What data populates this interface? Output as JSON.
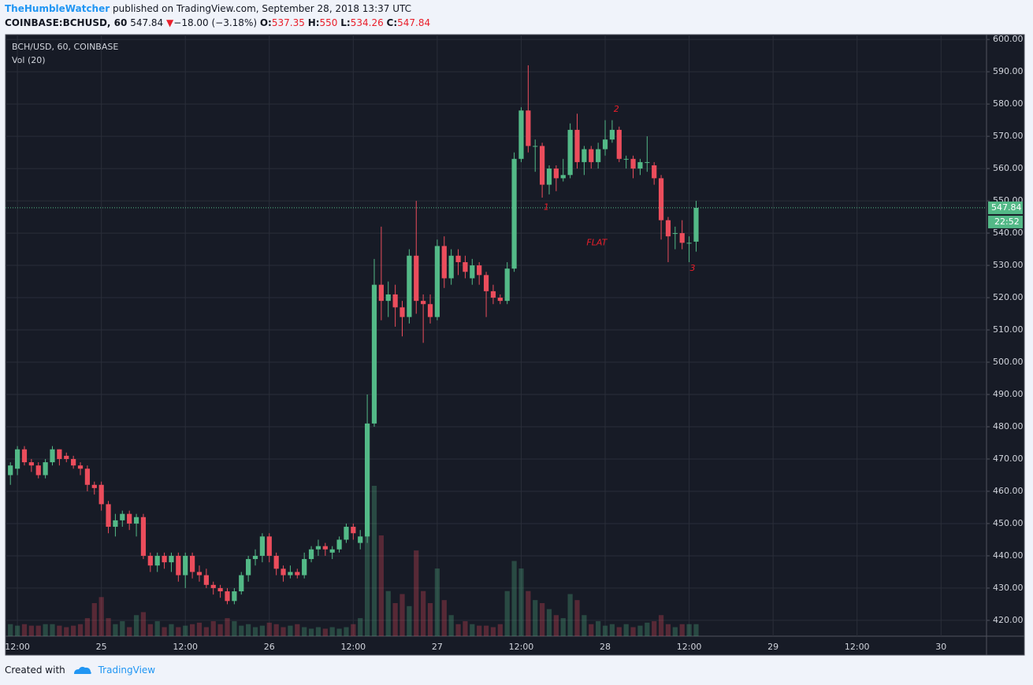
{
  "header": {
    "author": "TheHumbleWatcher",
    "published": "published on TradingView.com, September 28, 2018 13:37 UTC",
    "symbol": "COINBASE:BCHUSD, 60",
    "last": 547.84,
    "change": "−18.00 (−3.18%)",
    "o_label": "O:",
    "o": 537.35,
    "h_label": "H:",
    "h": 550.0,
    "l_label": "L:",
    "l": 534.26,
    "c_label": "C:",
    "c": 547.84
  },
  "chart_data": {
    "type": "candlestick",
    "legend": "BCH/USD, 60, COINBASE",
    "volume_label": "Vol (20)",
    "countdown": "22:52",
    "up_color": "#53b987",
    "down_color": "#eb4d5c",
    "grid": true,
    "xlim": [
      -1.7,
      138.5
    ],
    "ylim": [
      415.1,
      601.5
    ],
    "xticks": [
      {
        "value": 0,
        "label": "12:00"
      },
      {
        "value": 12,
        "label": "25"
      },
      {
        "value": 24,
        "label": "12:00"
      },
      {
        "value": 36,
        "label": "26"
      },
      {
        "value": 48,
        "label": "12:00"
      },
      {
        "value": 60,
        "label": "27"
      },
      {
        "value": 72,
        "label": "12:00"
      },
      {
        "value": 84,
        "label": "28"
      },
      {
        "value": 96,
        "label": "12:00"
      },
      {
        "value": 108,
        "label": "29"
      },
      {
        "value": 120,
        "label": "12:00"
      },
      {
        "value": 132,
        "label": "30"
      }
    ],
    "yticks": [
      {
        "value": 420,
        "label": "420.00"
      },
      {
        "value": 430,
        "label": "430.00"
      },
      {
        "value": 440,
        "label": "440.00"
      },
      {
        "value": 450,
        "label": "450.00"
      },
      {
        "value": 460,
        "label": "460.00"
      },
      {
        "value": 470,
        "label": "470.00"
      },
      {
        "value": 480,
        "label": "480.00"
      },
      {
        "value": 490,
        "label": "490.00"
      },
      {
        "value": 500,
        "label": "500.00"
      },
      {
        "value": 510,
        "label": "510.00"
      },
      {
        "value": 520,
        "label": "520.00"
      },
      {
        "value": 530,
        "label": "530.00"
      },
      {
        "value": 540,
        "label": "540.00"
      },
      {
        "value": 550,
        "label": "550.00"
      },
      {
        "value": 560,
        "label": "560.00"
      },
      {
        "value": 570,
        "label": "570.00"
      },
      {
        "value": 580,
        "label": "580.00"
      },
      {
        "value": 590,
        "label": "590.00"
      },
      {
        "value": 600,
        "label": "600.00"
      }
    ],
    "x": [
      -1,
      0,
      1,
      2,
      3,
      4,
      5,
      6,
      7,
      8,
      9,
      10,
      11,
      12,
      13,
      14,
      15,
      16,
      17,
      18,
      19,
      20,
      21,
      22,
      23,
      24,
      25,
      26,
      27,
      28,
      29,
      30,
      31,
      32,
      33,
      34,
      35,
      36,
      37,
      38,
      39,
      40,
      41,
      42,
      43,
      44,
      45,
      46,
      47,
      48,
      49,
      50,
      51,
      52,
      53,
      54,
      55,
      56,
      57,
      58,
      59,
      60,
      61,
      62,
      63,
      64,
      65,
      66,
      67,
      68,
      69,
      70,
      71,
      72,
      73,
      74,
      75,
      76,
      77,
      78,
      79,
      80,
      81,
      82,
      83,
      84,
      85,
      86,
      87,
      88,
      89,
      90,
      91,
      92,
      93,
      94,
      95,
      96,
      97
    ],
    "open": [
      465,
      467,
      473,
      469,
      468,
      465,
      469,
      473,
      471,
      470,
      468,
      467,
      462,
      462,
      456,
      449,
      451,
      453,
      450,
      452,
      440,
      437,
      440,
      438,
      440,
      434,
      440,
      435,
      434,
      431,
      430,
      429,
      426,
      429,
      434,
      439,
      440,
      446,
      440,
      436,
      434,
      435,
      434,
      439,
      442,
      443,
      441,
      442,
      445,
      449,
      444,
      446,
      481,
      524,
      519,
      521,
      517,
      514,
      533,
      519,
      518,
      514,
      536,
      526,
      533,
      531,
      526,
      530,
      527,
      522,
      520,
      519,
      529,
      563,
      578,
      567,
      567,
      555,
      560,
      557,
      558,
      572,
      562,
      566,
      562,
      566,
      569,
      572,
      563,
      563,
      560,
      562,
      561,
      557,
      544,
      540,
      540,
      537,
      537.35
    ],
    "close": [
      468,
      473,
      469,
      468,
      465,
      469,
      473,
      470,
      470,
      468,
      467,
      462,
      461,
      456,
      449,
      451,
      453,
      450,
      452,
      440,
      437,
      440,
      438,
      440,
      434,
      440,
      435,
      434,
      431,
      430,
      429,
      426,
      429,
      434,
      439,
      440,
      446,
      440,
      436,
      434,
      435,
      434,
      439,
      442,
      443,
      442,
      442,
      445,
      449,
      447,
      446,
      481,
      524,
      519,
      521,
      517,
      514,
      533,
      519,
      518,
      514,
      536,
      526,
      533,
      531,
      528,
      530,
      527,
      522,
      520,
      519,
      529,
      563,
      578,
      567,
      567,
      555,
      560,
      557,
      558,
      572,
      562,
      566,
      562,
      566,
      569,
      572,
      563,
      563,
      560,
      562,
      562,
      557,
      544,
      539,
      540,
      537,
      537,
      547.84
    ],
    "high": [
      469,
      474,
      474,
      470,
      469,
      470,
      474,
      473,
      472,
      471,
      469,
      468,
      463,
      463,
      457,
      453,
      454,
      454,
      453,
      453,
      441,
      441,
      441,
      441,
      441,
      441,
      441,
      437,
      436,
      432,
      431,
      430,
      430,
      435,
      440,
      442,
      447,
      447,
      441,
      437,
      437,
      436,
      441,
      443,
      445,
      444,
      443,
      446,
      450,
      450,
      448,
      490,
      532,
      542,
      525,
      524,
      519,
      535,
      550,
      521,
      521,
      538,
      539,
      535,
      535,
      533,
      532,
      531,
      528,
      524,
      521,
      531,
      565,
      579,
      592,
      569,
      568,
      561,
      561,
      563,
      574,
      577,
      567,
      567,
      568,
      575,
      575,
      573,
      564,
      564,
      563,
      570,
      562,
      558,
      545,
      542,
      544,
      539,
      550
    ],
    "low": [
      462,
      465,
      468,
      466,
      464,
      464,
      468,
      468,
      469,
      467,
      465,
      460,
      459,
      454,
      447,
      446,
      449,
      448,
      446,
      439,
      435,
      435,
      436,
      435,
      432,
      430,
      433,
      432,
      430,
      428,
      427,
      425,
      425,
      428,
      432,
      437,
      438,
      438,
      434,
      432,
      433,
      433,
      433,
      438,
      440,
      440,
      439,
      441,
      444,
      445,
      442,
      444,
      480,
      513,
      514,
      511,
      508,
      512,
      515,
      506,
      512,
      513,
      523,
      524,
      527,
      526,
      524,
      524,
      514,
      518,
      518,
      518,
      528,
      562,
      565,
      559,
      551,
      552,
      553,
      556,
      557,
      560,
      558,
      560,
      560,
      564,
      568,
      562,
      560,
      557,
      558,
      559,
      555,
      538,
      531,
      535,
      535,
      531,
      534.26
    ],
    "volume": [
      8,
      7,
      8,
      7,
      7,
      8,
      8,
      7,
      6,
      7,
      8,
      12,
      22,
      26,
      12,
      8,
      10,
      6,
      14,
      16,
      8,
      10,
      6,
      8,
      6,
      7,
      8,
      9,
      6,
      10,
      8,
      12,
      10,
      7,
      8,
      6,
      7,
      9,
      8,
      6,
      7,
      8,
      6,
      5,
      6,
      5,
      6,
      5,
      6,
      8,
      12,
      80,
      100,
      67,
      30,
      22,
      28,
      20,
      57,
      30,
      22,
      45,
      24,
      14,
      8,
      10,
      8,
      7,
      7,
      6,
      8,
      30,
      50,
      45,
      30,
      24,
      22,
      18,
      14,
      12,
      28,
      24,
      14,
      8,
      10,
      7,
      8,
      6,
      8,
      6,
      7,
      9,
      10,
      14,
      8,
      6,
      8,
      8,
      8
    ],
    "annotations": [
      {
        "text": "1",
        "x": 75.6,
        "y": 548
      },
      {
        "text": "2",
        "x": 85.6,
        "y": 578.3
      },
      {
        "text": "FLAT",
        "x": 82.8,
        "y": 537
      },
      {
        "text": "3",
        "x": 96.5,
        "y": 529
      }
    ]
  },
  "footer": {
    "created": "Created with",
    "brand": "TradingView"
  }
}
